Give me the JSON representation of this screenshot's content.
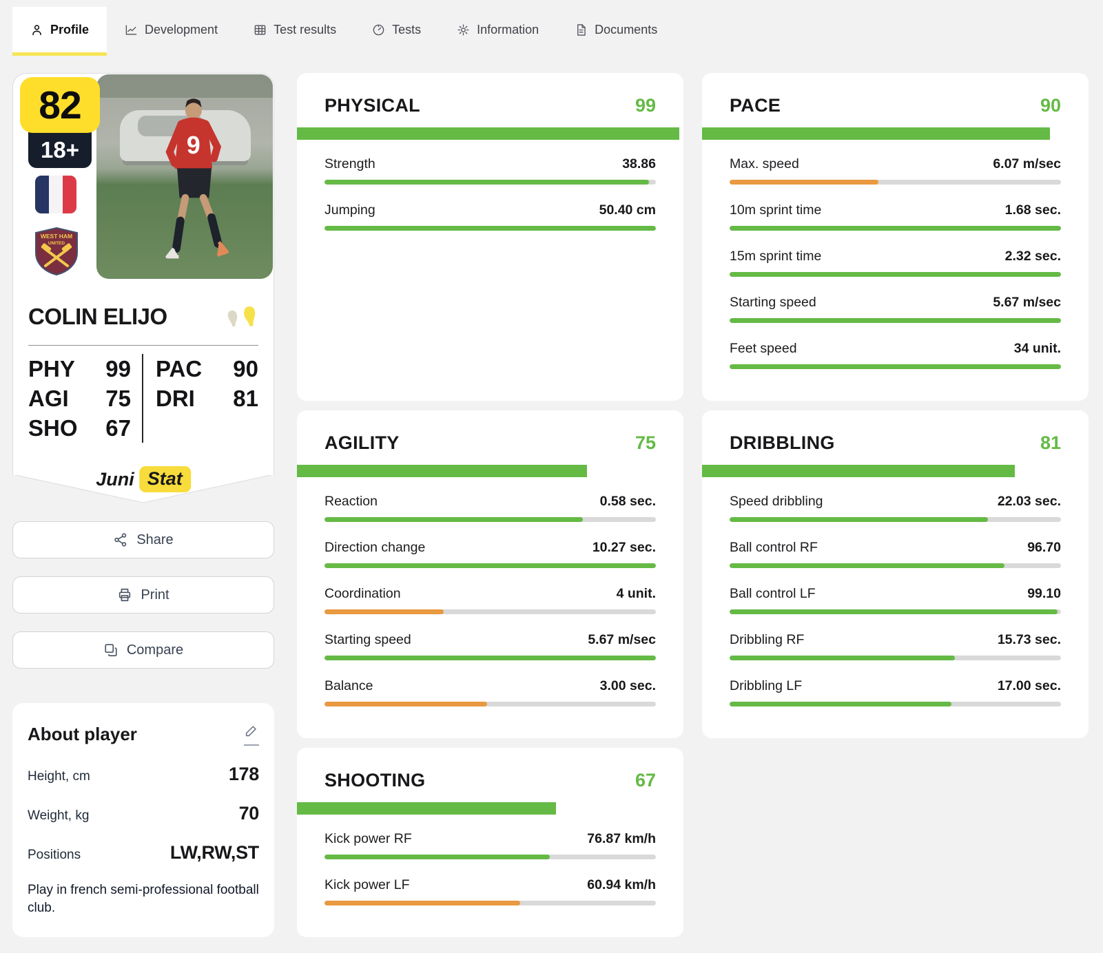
{
  "nav": {
    "tabs": [
      {
        "label": "Profile",
        "icon": "person-icon",
        "active": true
      },
      {
        "label": "Development",
        "icon": "line-chart-icon",
        "active": false
      },
      {
        "label": "Test results",
        "icon": "table-icon",
        "active": false
      },
      {
        "label": "Tests",
        "icon": "gauge-icon",
        "active": false
      },
      {
        "label": "Information",
        "icon": "gear-icon",
        "active": false
      },
      {
        "label": "Documents",
        "icon": "document-icon",
        "active": false
      }
    ]
  },
  "player_card": {
    "rating": "82",
    "age_badge": "18+",
    "name": "COLIN ELIJO",
    "nationality": "France",
    "club": "West Ham United",
    "crest": {
      "line1": "WEST HAM",
      "line2": "UNITED"
    },
    "jersey_number": "9",
    "stats_left": [
      {
        "label": "PHY",
        "value": "99"
      },
      {
        "label": "AGI",
        "value": "75"
      },
      {
        "label": "SHO",
        "value": "67"
      }
    ],
    "stats_right": [
      {
        "label": "PAC",
        "value": "90"
      },
      {
        "label": "DRI",
        "value": "81"
      }
    ],
    "brand": {
      "prefix": "Juni",
      "suffix": "Stat"
    }
  },
  "actions": {
    "share": "Share",
    "print": "Print",
    "compare": "Compare"
  },
  "about": {
    "title": "About player",
    "rows": [
      {
        "label": "Height, cm",
        "value": "178"
      },
      {
        "label": "Weight, kg",
        "value": "70"
      },
      {
        "label": "Positions",
        "value": "LW,RW,ST"
      }
    ],
    "note": "Play in french semi-professional football club."
  },
  "colors": {
    "green": "#65ba45",
    "orange": "#e9993f",
    "track": "#d9d9d9",
    "yellow": "#ffde2b"
  },
  "chart_data": {
    "type": "bar",
    "panels": {
      "physical": {
        "title": "PHYSICAL",
        "score": "99",
        "score_pct": 99,
        "rows": [
          {
            "label": "Strength",
            "value": "38.86",
            "pct": 98,
            "color": "green"
          },
          {
            "label": "Jumping",
            "value": "50.40 cm",
            "pct": 100,
            "color": "green"
          }
        ]
      },
      "pace": {
        "title": "PACE",
        "score": "90",
        "score_pct": 90,
        "rows": [
          {
            "label": "Max. speed",
            "value": "6.07 m/sec",
            "pct": 45,
            "color": "orange"
          },
          {
            "label": "10m sprint time",
            "value": "1.68 sec.",
            "pct": 100,
            "color": "green"
          },
          {
            "label": "15m sprint time",
            "value": "2.32 sec.",
            "pct": 100,
            "color": "green"
          },
          {
            "label": "Starting speed",
            "value": "5.67 m/sec",
            "pct": 100,
            "color": "green"
          },
          {
            "label": "Feet speed",
            "value": "34 unit.",
            "pct": 100,
            "color": "green"
          }
        ]
      },
      "agility": {
        "title": "AGILITY",
        "score": "75",
        "score_pct": 75,
        "rows": [
          {
            "label": "Reaction",
            "value": "0.58 sec.",
            "pct": 78,
            "color": "green"
          },
          {
            "label": "Direction change",
            "value": "10.27 sec.",
            "pct": 100,
            "color": "green"
          },
          {
            "label": "Coordination",
            "value": "4 unit.",
            "pct": 36,
            "color": "orange"
          },
          {
            "label": "Starting speed",
            "value": "5.67 m/sec",
            "pct": 100,
            "color": "green"
          },
          {
            "label": "Balance",
            "value": "3.00 sec.",
            "pct": 49,
            "color": "orange"
          }
        ]
      },
      "dribbling": {
        "title": "DRIBBLING",
        "score": "81",
        "score_pct": 81,
        "rows": [
          {
            "label": "Speed dribbling",
            "value": "22.03 sec.",
            "pct": 78,
            "color": "green"
          },
          {
            "label": "Ball control RF",
            "value": "96.70",
            "pct": 83,
            "color": "green"
          },
          {
            "label": "Ball control LF",
            "value": "99.10",
            "pct": 99,
            "color": "green"
          },
          {
            "label": "Dribbling RF",
            "value": "15.73 sec.",
            "pct": 68,
            "color": "green"
          },
          {
            "label": "Dribbling LF",
            "value": "17.00 sec.",
            "pct": 67,
            "color": "green"
          }
        ]
      },
      "shooting": {
        "title": "SHOOTING",
        "score": "67",
        "score_pct": 67,
        "rows": [
          {
            "label": "Kick power RF",
            "value": "76.87 km/h",
            "pct": 68,
            "color": "green"
          },
          {
            "label": "Kick power LF",
            "value": "60.94 km/h",
            "pct": 59,
            "color": "orange"
          }
        ]
      }
    }
  }
}
